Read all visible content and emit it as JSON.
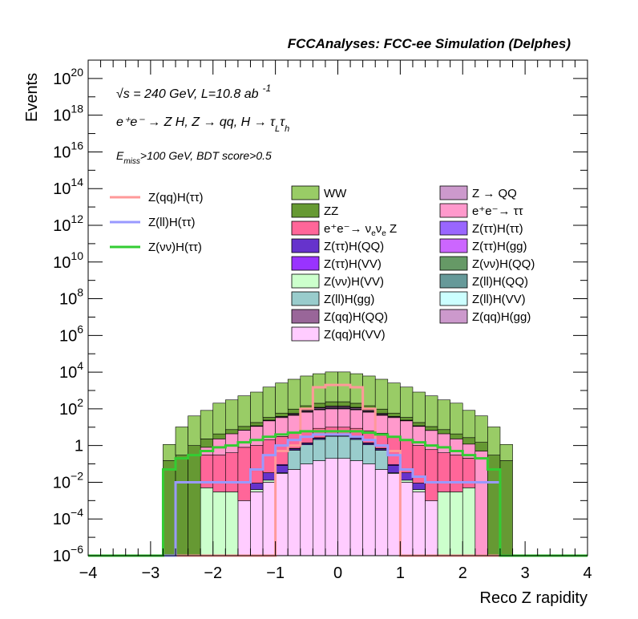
{
  "chart_data": {
    "type": "bar",
    "title": "FCCAnalyses: FCC-ee Simulation (Delphes)",
    "xlabel": "Reco Z rapidity",
    "ylabel": "Events",
    "xlim": [
      -4,
      4
    ],
    "ylim_exponent": [
      -6,
      21
    ],
    "log_y": true,
    "grid": false,
    "x_ticks": [
      "−4",
      "−3",
      "−2",
      "−1",
      "0",
      "1",
      "2",
      "3",
      "4"
    ],
    "y_ticks": [
      {
        "base": "10",
        "exp": "−6",
        "e": -6
      },
      {
        "base": "10",
        "exp": "−4",
        "e": -4
      },
      {
        "base": "10",
        "exp": "−2",
        "e": -2
      },
      {
        "base": "1",
        "exp": "",
        "e": 0
      },
      {
        "base": "10",
        "exp": "2",
        "e": 2
      },
      {
        "base": "10",
        "exp": "4",
        "e": 4
      },
      {
        "base": "10",
        "exp": "6",
        "e": 6
      },
      {
        "base": "10",
        "exp": "8",
        "e": 8
      },
      {
        "base": "10",
        "exp": "10",
        "e": 10
      },
      {
        "base": "10",
        "exp": "12",
        "e": 12
      },
      {
        "base": "10",
        "exp": "14",
        "e": 14
      },
      {
        "base": "10",
        "exp": "16",
        "e": 16
      },
      {
        "base": "10",
        "exp": "18",
        "e": 18
      },
      {
        "base": "10",
        "exp": "20",
        "e": 20
      }
    ],
    "annotations": {
      "line1": {
        "sqrt": "√s",
        "rest": " = 240 GeV, L=10.8 ab",
        "sup": "-1"
      },
      "line2": {
        "text": "e⁺e⁻ → Z H, Z → qq, H → τ",
        "sub1": "L",
        "mid": "τ",
        "sub2": "h"
      },
      "line3": {
        "pre": "E",
        "sub": "miss",
        "post": ">100 GeV, BDT score>0.5"
      }
    },
    "bin_edges": [
      -2.8,
      -2.6,
      -2.4,
      -2.2,
      -2.0,
      -1.8,
      -1.6,
      -1.4,
      -1.2,
      -1.0,
      -0.8,
      -0.6,
      -0.4,
      -0.2,
      0.0,
      0.2,
      0.4,
      0.6,
      0.8,
      1.0,
      1.2,
      1.4,
      1.6,
      1.8,
      2.0,
      2.2,
      2.4,
      2.6,
      2.8
    ],
    "stack_series": [
      {
        "name": "Z(qq)H(VV)",
        "color": "#ffccff",
        "values": [
          0,
          0,
          0,
          0,
          0,
          0,
          0.001,
          0.003,
          0.01,
          0.03,
          0.05,
          0.1,
          0.15,
          0.2,
          0.2,
          0.15,
          0.1,
          0.05,
          0.03,
          0.01,
          0.003,
          0.001,
          0,
          0,
          0,
          0,
          0,
          0
        ]
      },
      {
        "name": "Z(ll)H(gg)",
        "color": "#99cccc",
        "values": [
          0,
          0,
          0,
          0,
          0,
          0,
          0,
          1e-06,
          1e-06,
          1e-06,
          0.5,
          1,
          2,
          3,
          3,
          2,
          1,
          0.5,
          1e-06,
          0,
          0,
          0,
          0,
          0,
          0,
          0,
          0,
          0
        ]
      },
      {
        "name": "Z → QQ",
        "color": "#cc99cc",
        "values": [
          0,
          0,
          0,
          0,
          0,
          0,
          0,
          0,
          0,
          0,
          0,
          0,
          0,
          0.1,
          0.1,
          0,
          0,
          0,
          0,
          0,
          0,
          0,
          0,
          0,
          0,
          0,
          0,
          0
        ]
      },
      {
        "name": "Z(νν)H(VV)",
        "color": "#ccffcc",
        "values": [
          0,
          1e-06,
          1e-06,
          0.005,
          0.003,
          0.003,
          1e-06,
          0.001,
          0.003,
          0.003,
          0.004,
          0.005,
          0.006,
          0.007,
          0.007,
          0.006,
          0.005,
          0.004,
          0.003,
          0.003,
          0.001,
          1e-06,
          0.003,
          0.003,
          0.005,
          0,
          0,
          0
        ]
      },
      {
        "name": "Z(ττ)H(QQ)",
        "color": "#6633cc",
        "values": [
          0,
          0,
          0,
          0,
          0,
          0,
          0,
          0.005,
          0.02,
          0.05,
          0.1,
          0.2,
          0.3,
          0.4,
          0.4,
          0.3,
          0.2,
          0.1,
          0.05,
          0.02,
          0.005,
          0,
          0,
          0,
          0,
          0,
          0,
          0
        ]
      },
      {
        "name": "Z(ττ)H(VV)",
        "color": "#9933ff",
        "values": [
          0,
          0,
          0,
          0,
          0,
          0,
          0,
          0,
          1e-06,
          0.01,
          0.05,
          0.1,
          0.2,
          0.3,
          0.3,
          0.2,
          0.1,
          0.05,
          0.01,
          0,
          0,
          0,
          0,
          0,
          0,
          0,
          0,
          0
        ]
      },
      {
        "name": "e⁺e⁻→ ν_eν_e Z",
        "color": "#ff6699",
        "values": [
          0,
          0,
          0,
          0.3,
          0.3,
          0.4,
          0.8,
          1,
          2,
          3,
          4,
          5,
          6,
          6,
          6,
          6,
          5,
          4,
          3,
          2,
          1,
          0.6,
          0.4,
          0.3,
          0.2,
          0,
          0,
          0
        ]
      },
      {
        "name": "e⁺e⁻→ ττ",
        "color": "#ff99cc",
        "values": [
          0,
          0,
          0,
          0.5,
          2,
          4,
          6,
          10,
          20,
          30,
          40,
          60,
          80,
          90,
          90,
          80,
          60,
          40,
          30,
          20,
          10,
          6,
          4,
          2,
          1,
          0.5,
          0,
          0
        ]
      },
      {
        "name": "Z(ττ)H(ττ)",
        "color": "#9966ff",
        "values": [
          0,
          0,
          0,
          0,
          0,
          0,
          0.05,
          0.2,
          0.5,
          1,
          2,
          4,
          6,
          8,
          8,
          6,
          4,
          2,
          1,
          0.5,
          0.2,
          0.05,
          0,
          0,
          0,
          0,
          0,
          0
        ]
      },
      {
        "name": "Z(ττ)H(gg)",
        "color": "#cc66ff",
        "values": [
          0,
          0,
          0,
          0,
          0,
          0,
          0.01,
          0.05,
          0.1,
          0.3,
          0.6,
          1,
          2,
          3,
          3,
          2,
          1,
          0.6,
          0.3,
          0.1,
          0.05,
          0.01,
          0,
          0,
          0,
          0,
          0,
          0
        ]
      },
      {
        "name": "Z(ll)H(QQ)",
        "color": "#669999",
        "values": [
          0,
          0,
          0,
          0,
          0,
          0,
          0,
          0,
          0,
          0.05,
          0.2,
          0.5,
          1,
          1.5,
          1.5,
          1,
          0.5,
          0.2,
          0.05,
          0,
          0,
          0,
          0,
          0,
          0,
          0,
          0,
          0
        ]
      },
      {
        "name": "Z(ll)H(VV)",
        "color": "#ccffff",
        "values": [
          0,
          0,
          0,
          0,
          0,
          0,
          0,
          0,
          0,
          0.02,
          0.05,
          0.1,
          0.2,
          0.3,
          0.3,
          0.2,
          0.1,
          0.05,
          0.02,
          0,
          0,
          0,
          0,
          0,
          0,
          0,
          0,
          0
        ]
      },
      {
        "name": "Z(νν)H(QQ)",
        "color": "#669966",
        "values": [
          0,
          0,
          0,
          0,
          0,
          0,
          0.001,
          0.005,
          0.01,
          0.02,
          0.05,
          0.1,
          0.2,
          0.3,
          0.3,
          0.2,
          0.1,
          0.05,
          0.02,
          0.01,
          0.005,
          0.001,
          0,
          0,
          0,
          0,
          0,
          0
        ]
      },
      {
        "name": "Z(qq)H(QQ)",
        "color": "#996699",
        "values": [
          0,
          0,
          0,
          0,
          0,
          0,
          0.1,
          0.5,
          1,
          3,
          6,
          10,
          15,
          20,
          20,
          15,
          10,
          6,
          3,
          1,
          0.5,
          0.1,
          0,
          0,
          0,
          0,
          0,
          0
        ]
      },
      {
        "name": "Z(qq)H(gg)",
        "color": "#cc99cc",
        "values": [
          0,
          0,
          0,
          0,
          0,
          0,
          0.05,
          0.2,
          0.5,
          1,
          3,
          5,
          8,
          10,
          10,
          8,
          5,
          3,
          1,
          0.5,
          0.2,
          0.05,
          0,
          0,
          0,
          0,
          0,
          0
        ]
      },
      {
        "name": "ZZ",
        "color": "#669933",
        "values": [
          0.15,
          0.3,
          1,
          1.5,
          2,
          3,
          4,
          6,
          10,
          20,
          40,
          60,
          80,
          100,
          100,
          80,
          60,
          40,
          20,
          10,
          6,
          4,
          3,
          2,
          1.5,
          1,
          0.3,
          0.15
        ]
      },
      {
        "name": "WW",
        "color": "#99cc66",
        "values": [
          1,
          10,
          40,
          80,
          200,
          300,
          500,
          800,
          1500,
          2500,
          4000,
          6000,
          8000,
          10000,
          10000,
          8000,
          6000,
          4000,
          2500,
          1500,
          800,
          500,
          300,
          200,
          80,
          40,
          10,
          1
        ]
      }
    ],
    "line_series": [
      {
        "name": "Z(qq)H(ττ)",
        "color": "#ff9999",
        "values": [
          0,
          0,
          0,
          0,
          0,
          0,
          0,
          1e-06,
          1e-06,
          0.5,
          1,
          100,
          1500,
          2000,
          2000,
          1500,
          100,
          1,
          0.5,
          1e-06,
          1e-06,
          0,
          0,
          0,
          0,
          0,
          0,
          0
        ]
      },
      {
        "name": "Z(ll)H(ττ)",
        "color": "#9999ff",
        "values": [
          1e-06,
          0.01,
          0.01,
          0.01,
          0.01,
          0.01,
          0.01,
          0.05,
          0.3,
          1,
          2,
          3,
          4,
          4,
          4,
          3,
          2,
          1,
          0.3,
          0.05,
          0.02,
          0.01,
          0.01,
          0.01,
          0.01,
          0.01,
          0.01,
          1e-06
        ]
      },
      {
        "name": "Z(νν)H(ττ)",
        "color": "#33cc33",
        "values": [
          0.05,
          0.2,
          0.3,
          0.5,
          0.8,
          1,
          1.5,
          2,
          3,
          4,
          5,
          6,
          6,
          6,
          6,
          6,
          5,
          4,
          3,
          2,
          1.5,
          1,
          0.8,
          0.5,
          0.3,
          0.2,
          0.05,
          1e-06
        ]
      }
    ],
    "legend_lines": [
      "Z(qq)H(ττ)",
      "Z(ll)H(ττ)",
      "Z(νν)H(ττ)"
    ],
    "legend_boxes_col1": [
      {
        "name": "WW",
        "color": "#99cc66"
      },
      {
        "name": "ZZ",
        "color": "#669933"
      },
      {
        "name": "e⁺e⁻→ ν",
        "sub": "e",
        "mid": "ν",
        "sub2": "e",
        "tail": " Z",
        "color": "#ff6699"
      },
      {
        "name": "Z(ττ)H(QQ)",
        "color": "#6633cc"
      },
      {
        "name": "Z(ττ)H(VV)",
        "color": "#9933ff"
      },
      {
        "name": "Z(νν)H(VV)",
        "color": "#ccffcc"
      },
      {
        "name": "Z(ll)H(gg)",
        "color": "#99cccc"
      },
      {
        "name": "Z(qq)H(QQ)",
        "color": "#996699"
      },
      {
        "name": "Z(qq)H(VV)",
        "color": "#ffccff"
      }
    ],
    "legend_boxes_col2": [
      {
        "name": "Z → QQ",
        "color": "#cc99cc"
      },
      {
        "name": "e⁺e⁻→ ττ",
        "color": "#ff99cc"
      },
      {
        "name": "Z(ττ)H(ττ)",
        "color": "#9966ff"
      },
      {
        "name": "Z(ττ)H(gg)",
        "color": "#cc66ff"
      },
      {
        "name": "Z(νν)H(QQ)",
        "color": "#669966"
      },
      {
        "name": "Z(ll)H(QQ)",
        "color": "#669999"
      },
      {
        "name": "Z(ll)H(VV)",
        "color": "#ccffff"
      },
      {
        "name": "Z(qq)H(gg)",
        "color": "#cc99cc"
      }
    ]
  }
}
